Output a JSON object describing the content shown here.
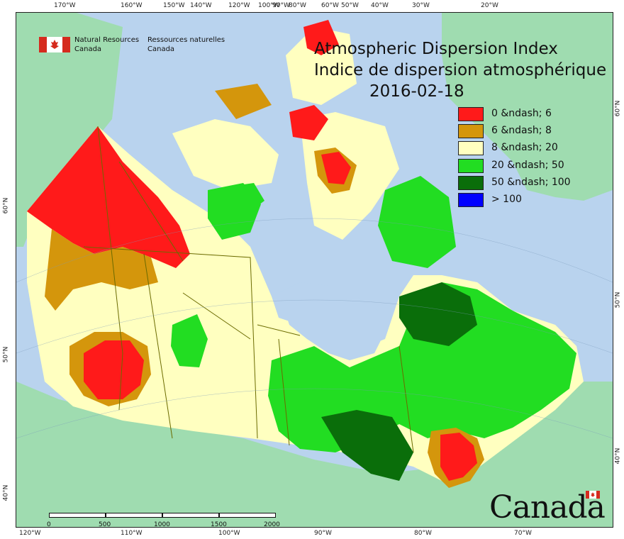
{
  "title": {
    "en": "Atmospheric Dispersion Index",
    "fr": "Indice de dispersion atmosphérique",
    "date": "2016-02-18"
  },
  "agency": {
    "en_line1": "Natural Resources",
    "en_line2": "Canada",
    "fr_line1": "Ressources naturelles",
    "fr_line2": "Canada"
  },
  "legend": [
    {
      "label": "0 &ndash; 6",
      "color": "#ff1a1a"
    },
    {
      "label": "6 &ndash; 8",
      "color": "#d4960c"
    },
    {
      "label": "8 &ndash; 20",
      "color": "#ffffc0"
    },
    {
      "label": "20 &ndash; 50",
      "color": "#22dd22"
    },
    {
      "label": "50 &ndash; 100",
      "color": "#0a6e0a"
    },
    {
      "label": "> 100",
      "color": "#0000ff"
    }
  ],
  "top_lon_labels": [
    "170°W",
    "160°W",
    "150°W",
    "140°W",
    "120°W",
    "100°W",
    "90°W",
    "80°W",
    "60°W",
    "50°W",
    "40°W",
    "30°W",
    "20°W"
  ],
  "bottom_lon_labels": [
    "120°W",
    "110°W",
    "100°W",
    "90°W",
    "80°W",
    "70°W"
  ],
  "left_lat_labels": [
    "60°N",
    "50°N",
    "40°N"
  ],
  "right_lat_labels": [
    "60°N",
    "50°N",
    "40°N"
  ],
  "scale": {
    "ticks": [
      "0",
      "500",
      "1000",
      "1500",
      "2000  km"
    ]
  },
  "wordmark": "Canada",
  "colors": {
    "ocean": "#b9d3ee",
    "land_outside": "#9fdcb0",
    "lake": "#b9d3ee",
    "border": "#6b6b00"
  }
}
